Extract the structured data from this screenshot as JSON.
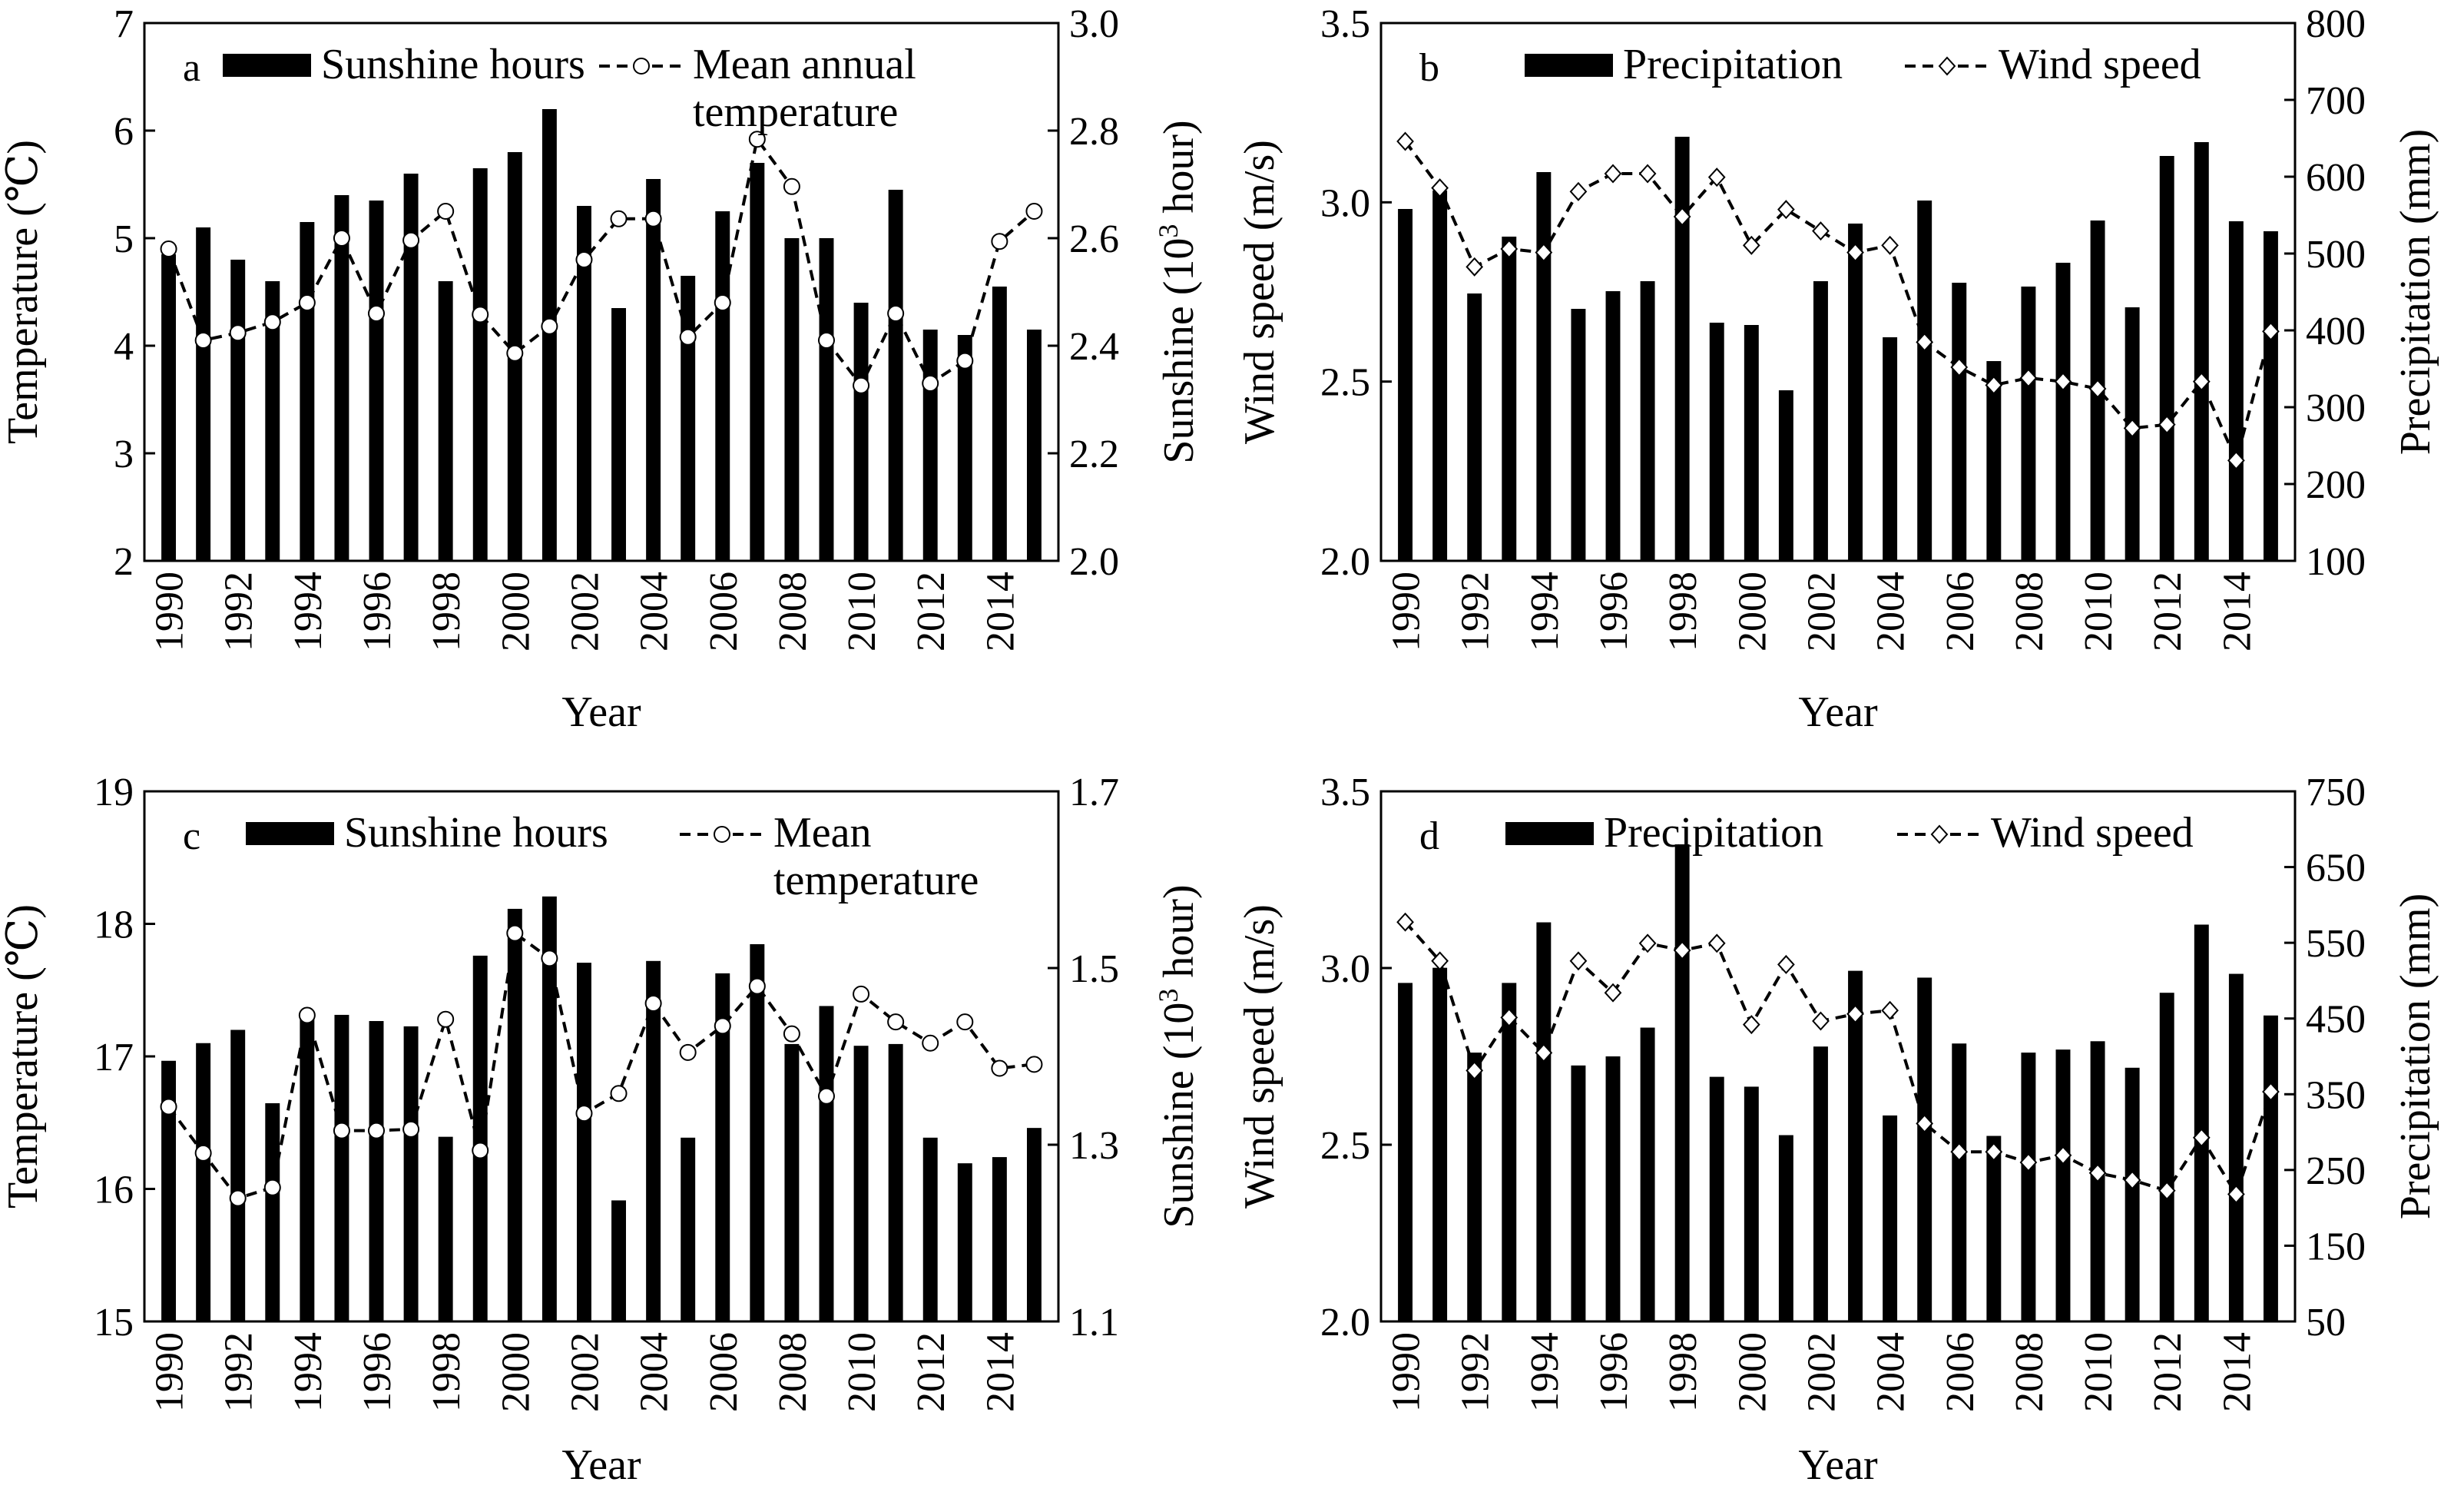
{
  "figure": {
    "years": [
      1990,
      1991,
      1992,
      1993,
      1994,
      1995,
      1996,
      1997,
      1998,
      1999,
      2000,
      2001,
      2002,
      2003,
      2004,
      2005,
      2006,
      2007,
      2008,
      2009,
      2010,
      2011,
      2012,
      2013,
      2014,
      2015
    ]
  },
  "chart_data": [
    {
      "panel": "a",
      "type": "bar+line",
      "xlabel": "Year",
      "x_ticks": [
        "1990",
        "1992",
        "1994",
        "1996",
        "1998",
        "2000",
        "2002",
        "2004",
        "2006",
        "2008",
        "2010",
        "2012",
        "2014"
      ],
      "left_axis": {
        "label": "Temperature (℃)",
        "range": [
          2,
          7
        ],
        "ticks": [
          "2",
          "3",
          "4",
          "5",
          "6",
          "7"
        ]
      },
      "right_axis": {
        "label_main": "Sunshine (10",
        "label_sup": "3",
        "label_end": " hour)",
        "range": [
          2.0,
          3.0
        ],
        "ticks": [
          "2.0",
          "2.2",
          "2.4",
          "2.6",
          "2.8",
          "3.0"
        ]
      },
      "bar_series": {
        "name": "Sunshine hours",
        "axis": "right",
        "values": [
          2.57,
          2.62,
          2.56,
          2.52,
          2.63,
          2.68,
          2.67,
          2.72,
          2.52,
          2.73,
          2.76,
          2.84,
          2.66,
          2.47,
          2.71,
          2.53,
          2.65,
          2.74,
          2.6,
          2.6,
          2.48,
          2.69,
          2.43,
          2.42,
          2.51,
          2.43
        ]
      },
      "line_series": {
        "name_line1": "Mean annual",
        "name_line2": "temperature",
        "axis": "left",
        "marker": "circle",
        "values": [
          4.9,
          4.05,
          4.12,
          4.22,
          4.4,
          5.0,
          4.3,
          4.98,
          5.25,
          4.29,
          3.93,
          4.18,
          4.8,
          5.18,
          5.18,
          4.08,
          4.4,
          5.92,
          5.48,
          4.05,
          3.63,
          4.3,
          3.65,
          3.86,
          4.97,
          5.25
        ]
      }
    },
    {
      "panel": "b",
      "type": "bar+line",
      "xlabel": "Year",
      "x_ticks": [
        "1990",
        "1992",
        "1994",
        "1996",
        "1998",
        "2000",
        "2002",
        "2004",
        "2006",
        "2008",
        "2010",
        "2012",
        "2014"
      ],
      "left_axis": {
        "label": "Wind speed (m/s)",
        "range": [
          2.0,
          3.5
        ],
        "ticks": [
          "2.0",
          "2.5",
          "3.0",
          "3.5"
        ]
      },
      "right_axis": {
        "label_main": "Precipitation (mm)",
        "range": [
          100,
          800
        ],
        "ticks": [
          "100",
          "200",
          "300",
          "400",
          "500",
          "600",
          "700",
          "800"
        ]
      },
      "bar_series": {
        "name": "Precipitation",
        "axis": "right",
        "values": [
          558,
          582,
          448,
          522,
          606,
          428,
          451,
          464,
          652,
          410,
          407,
          322,
          464,
          539,
          391,
          569,
          462,
          360,
          457,
          488,
          543,
          430,
          627,
          645,
          542,
          529
        ]
      },
      "line_series": {
        "name": "Wind speed",
        "axis": "left",
        "marker": "diamond",
        "values": [
          3.17,
          3.04,
          2.82,
          2.87,
          2.86,
          3.03,
          3.08,
          3.08,
          2.96,
          3.07,
          2.88,
          2.98,
          2.92,
          2.86,
          2.88,
          2.61,
          2.54,
          2.49,
          2.51,
          2.5,
          2.48,
          2.37,
          2.38,
          2.5,
          2.28,
          2.64
        ]
      }
    },
    {
      "panel": "c",
      "type": "bar+line",
      "xlabel": "Year",
      "x_ticks": [
        "1990",
        "1992",
        "1994",
        "1996",
        "1998",
        "2000",
        "2002",
        "2004",
        "2006",
        "2008",
        "2010",
        "2012",
        "2014"
      ],
      "left_axis": {
        "label": "Temperature (℃)",
        "range": [
          15,
          19
        ],
        "ticks": [
          "15",
          "16",
          "17",
          "18",
          "19"
        ]
      },
      "right_axis": {
        "label_main": "Sunshine (10",
        "label_sup": "3",
        "label_end": " hour)",
        "range": [
          1.1,
          1.7
        ],
        "ticks": [
          "1.1",
          "1.3",
          "1.5",
          "1.7"
        ]
      },
      "bar_series": {
        "name": "Sunshine hours",
        "axis": "right",
        "values": [
          1.395,
          1.415,
          1.43,
          1.347,
          1.445,
          1.447,
          1.44,
          1.434,
          1.309,
          1.514,
          1.567,
          1.581,
          1.506,
          1.237,
          1.508,
          1.308,
          1.494,
          1.527,
          1.414,
          1.457,
          1.412,
          1.414,
          1.308,
          1.279,
          1.286,
          1.319
        ]
      },
      "line_series": {
        "name_line1": "Mean",
        "name_line2": "temperature",
        "axis": "left",
        "marker": "circle",
        "values": [
          16.62,
          16.27,
          15.93,
          16.01,
          17.31,
          16.44,
          16.44,
          16.45,
          17.28,
          16.29,
          17.93,
          17.74,
          16.57,
          16.72,
          17.4,
          17.03,
          17.23,
          17.53,
          17.17,
          16.7,
          17.47,
          17.26,
          17.1,
          17.26,
          16.91,
          16.94
        ]
      }
    },
    {
      "panel": "d",
      "type": "bar+line",
      "xlabel": "Year",
      "x_ticks": [
        "1990",
        "1992",
        "1994",
        "1996",
        "1998",
        "2000",
        "2002",
        "2004",
        "2006",
        "2008",
        "2010",
        "2012",
        "2014"
      ],
      "left_axis": {
        "label": "Wind speed (m/s)",
        "range": [
          2.0,
          3.5
        ],
        "ticks": [
          "2.0",
          "2.5",
          "3.0",
          "3.5"
        ]
      },
      "right_axis": {
        "label_main": "Precipitation (mm)",
        "range": [
          50,
          750
        ],
        "ticks": [
          "50",
          "150",
          "250",
          "350",
          "450",
          "550",
          "650",
          "750"
        ]
      },
      "bar_series": {
        "name": "Precipitation",
        "axis": "right",
        "values": [
          497,
          517,
          405,
          497,
          577,
          388,
          400,
          438,
          680,
          373,
          360,
          296,
          413,
          513,
          322,
          504,
          417,
          295,
          405,
          409,
          420,
          385,
          484,
          574,
          509,
          454
        ]
      },
      "line_series": {
        "name": "Wind speed",
        "axis": "left",
        "marker": "diamond",
        "values": [
          3.13,
          3.02,
          2.71,
          2.86,
          2.76,
          3.02,
          2.93,
          3.07,
          3.05,
          3.07,
          2.84,
          3.01,
          2.85,
          2.87,
          2.88,
          2.56,
          2.48,
          2.48,
          2.45,
          2.47,
          2.42,
          2.4,
          2.37,
          2.52,
          2.36,
          2.65
        ]
      }
    }
  ]
}
